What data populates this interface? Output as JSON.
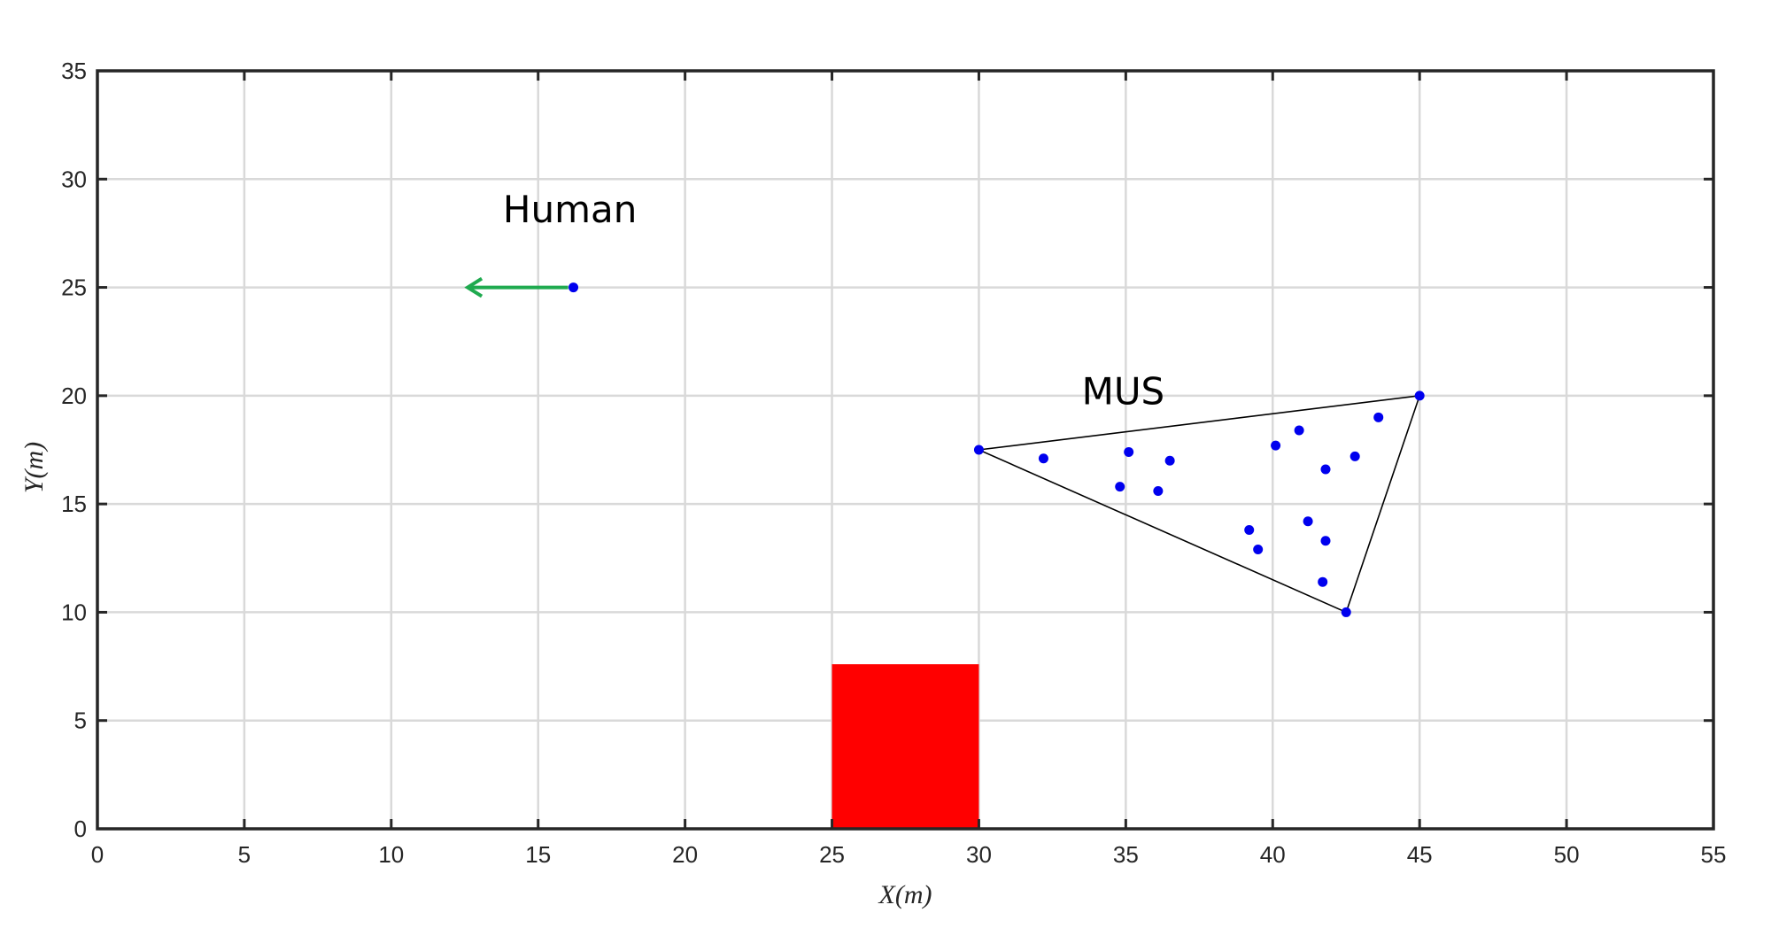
{
  "chart_data": {
    "type": "scatter",
    "title": "",
    "xlabel": "X(m)",
    "ylabel": "Y(m)",
    "xlim": [
      0,
      55
    ],
    "ylim": [
      0,
      35
    ],
    "xticks": [
      0,
      5,
      10,
      15,
      20,
      25,
      30,
      35,
      40,
      45,
      50,
      55
    ],
    "yticks": [
      0,
      5,
      10,
      15,
      20,
      25,
      30,
      35
    ],
    "grid": true,
    "colors": {
      "points": "#0000ee",
      "arrow": "#1faa4f",
      "obstacle": "#ff0000",
      "triangle": "#000000",
      "grid": "#d9d9d9",
      "axes": "#262626"
    },
    "human": {
      "label": "Human",
      "position": [
        16.2,
        25.0
      ],
      "arrow_to": [
        12.6,
        25.0
      ]
    },
    "mus": {
      "label": "MUS",
      "triangle": [
        [
          30.0,
          17.5
        ],
        [
          45.0,
          20.0
        ],
        [
          42.5,
          10.0
        ]
      ],
      "points": [
        [
          30.0,
          17.5
        ],
        [
          45.0,
          20.0
        ],
        [
          42.5,
          10.0
        ],
        [
          32.2,
          17.1
        ],
        [
          35.1,
          17.4
        ],
        [
          36.5,
          17.0
        ],
        [
          34.8,
          15.8
        ],
        [
          36.1,
          15.6
        ],
        [
          40.1,
          17.7
        ],
        [
          40.9,
          18.4
        ],
        [
          41.8,
          16.6
        ],
        [
          42.8,
          17.2
        ],
        [
          43.6,
          19.0
        ],
        [
          39.2,
          13.8
        ],
        [
          39.5,
          12.9
        ],
        [
          41.2,
          14.2
        ],
        [
          41.8,
          13.3
        ],
        [
          41.7,
          11.4
        ]
      ]
    },
    "obstacle": {
      "x": [
        25.0,
        30.0
      ],
      "y": [
        0.0,
        7.6
      ]
    }
  }
}
